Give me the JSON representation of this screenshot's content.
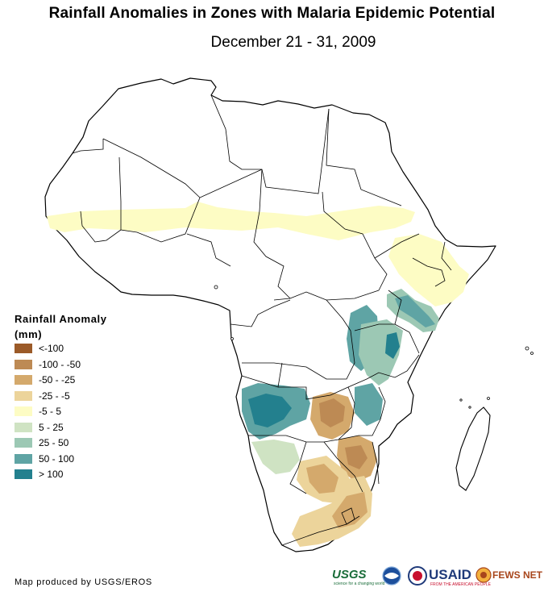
{
  "title": "Rainfall Anomalies in Zones with Malaria Epidemic Potential",
  "subtitle": "December 21 - 31, 2009",
  "legend": {
    "title_line1": "Rainfall Anomaly",
    "title_line2": "(mm)",
    "items": [
      {
        "label": "<-100",
        "color": "#9b5a28"
      },
      {
        "label": "-100 - -50",
        "color": "#bd8a54"
      },
      {
        "label": "-50 - -25",
        "color": "#d4a96c"
      },
      {
        "label": "-25 - -5",
        "color": "#ecd49b"
      },
      {
        "label": "-5 - 5",
        "color": "#fdfcc4"
      },
      {
        "label": "5 - 25",
        "color": "#cfe3c3"
      },
      {
        "label": "25 - 50",
        "color": "#9cc8b4"
      },
      {
        "label": "50 - 100",
        "color": "#5fa4a4"
      },
      {
        "label": "> 100",
        "color": "#23808e"
      }
    ]
  },
  "credit": "Map produced by USGS/EROS",
  "logos": {
    "usgs": "USGS",
    "usgs_tagline": "science for a changing world",
    "usaid": "USAID",
    "usaid_tagline": "FROM THE AMERICAN PEOPLE",
    "fewsnet": "FEWS NET"
  }
}
